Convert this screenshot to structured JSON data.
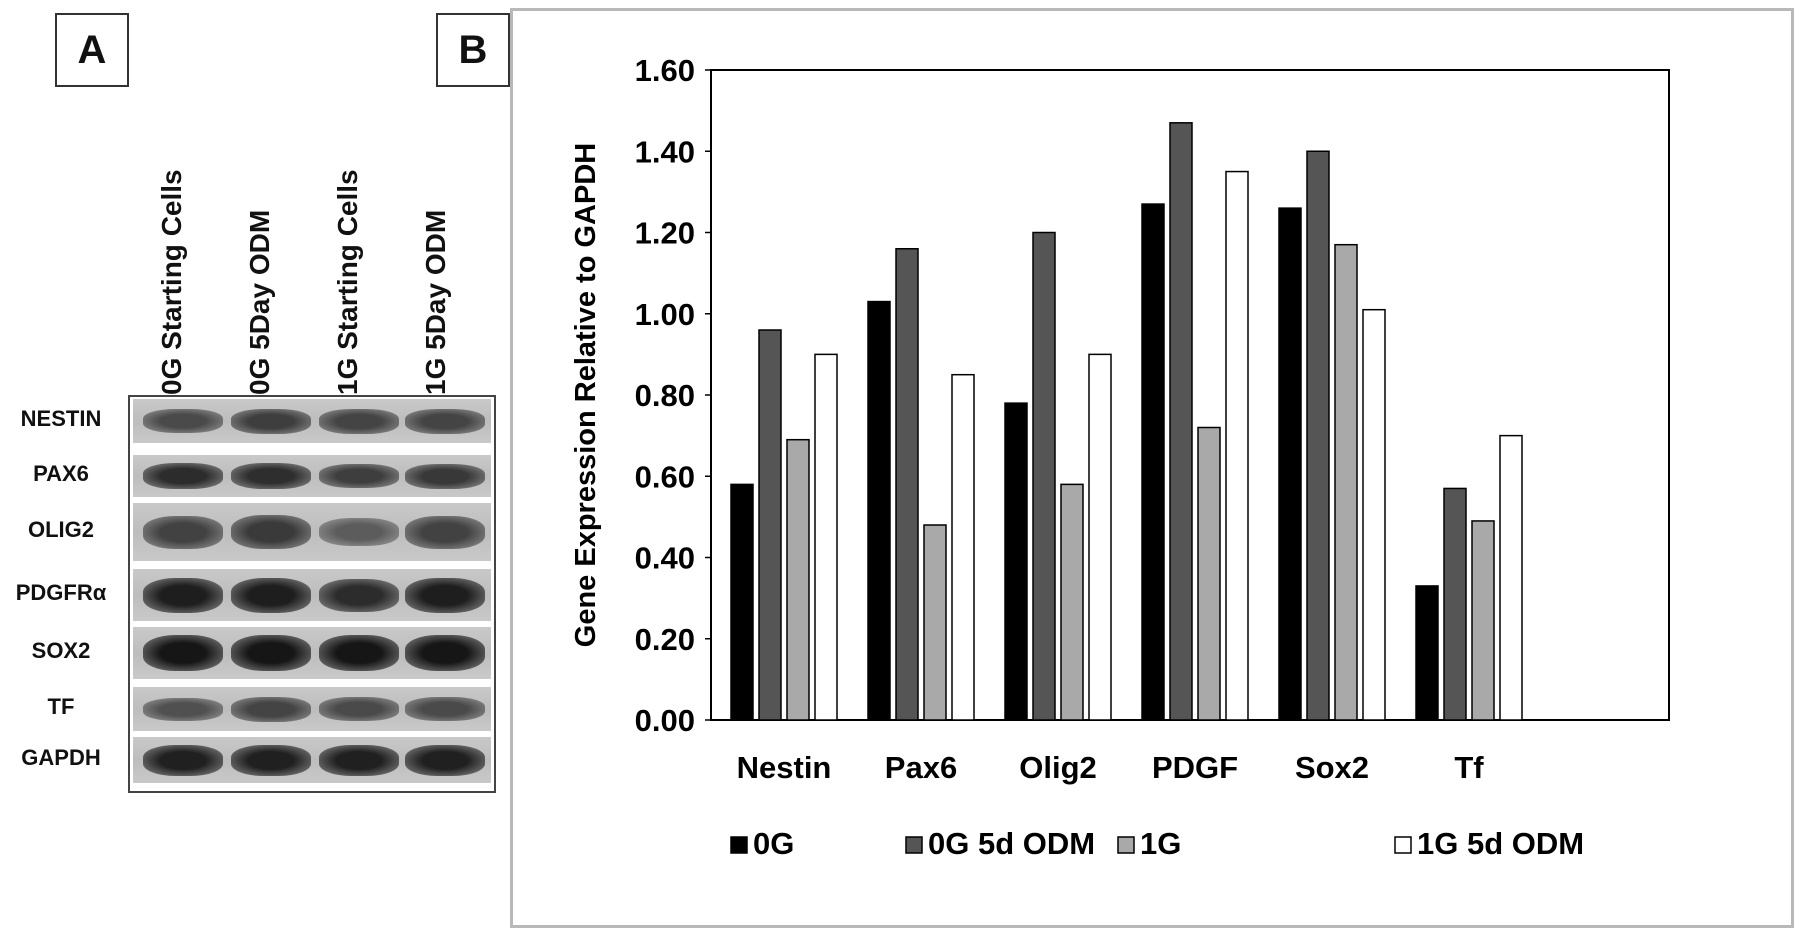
{
  "panel_a": {
    "label": "A",
    "lanes": [
      "0G Starting Cells",
      "0G 5Day ODM",
      "1G Starting Cells",
      "1G 5Day ODM"
    ],
    "rows": [
      "NESTIN",
      "PAX6",
      "OLIG2",
      "PDGFRα",
      "SOX2",
      "TF",
      "GAPDH"
    ],
    "band_intensity": [
      [
        0.55,
        0.65,
        0.6,
        0.6
      ],
      [
        0.8,
        0.78,
        0.65,
        0.7
      ],
      [
        0.62,
        0.68,
        0.4,
        0.62
      ],
      [
        0.92,
        0.92,
        0.8,
        0.92
      ],
      [
        0.98,
        0.98,
        0.98,
        0.98
      ],
      [
        0.5,
        0.6,
        0.55,
        0.55
      ],
      [
        0.9,
        0.9,
        0.9,
        0.9
      ]
    ]
  },
  "panel_b": {
    "label": "B"
  },
  "chart_data": {
    "type": "bar",
    "categories": [
      "Nestin",
      "Pax6",
      "Olig2",
      "PDGF",
      "Sox2",
      "Tf"
    ],
    "series": [
      {
        "name": "0G",
        "color": "#000000",
        "values": [
          0.58,
          1.03,
          0.78,
          1.27,
          1.26,
          0.33
        ]
      },
      {
        "name": "0G 5d ODM",
        "color": "#555555",
        "values": [
          0.96,
          1.16,
          1.2,
          1.47,
          1.4,
          0.57
        ]
      },
      {
        "name": "1G",
        "color": "#a9a9a9",
        "values": [
          0.69,
          0.48,
          0.58,
          0.72,
          1.17,
          0.49
        ]
      },
      {
        "name": "1G 5d ODM",
        "color": "#ffffff",
        "values": [
          0.9,
          0.85,
          0.9,
          1.35,
          1.01,
          0.7
        ]
      }
    ],
    "ylabel": "Gene Expression  Relative to GAPDH",
    "xlabel": "",
    "ylim": [
      0,
      1.6
    ],
    "yticks": [
      "0.00",
      "0.20",
      "0.40",
      "0.60",
      "0.80",
      "1.00",
      "1.20",
      "1.40",
      "1.60"
    ],
    "grid": false,
    "legend_position": "bottom"
  }
}
